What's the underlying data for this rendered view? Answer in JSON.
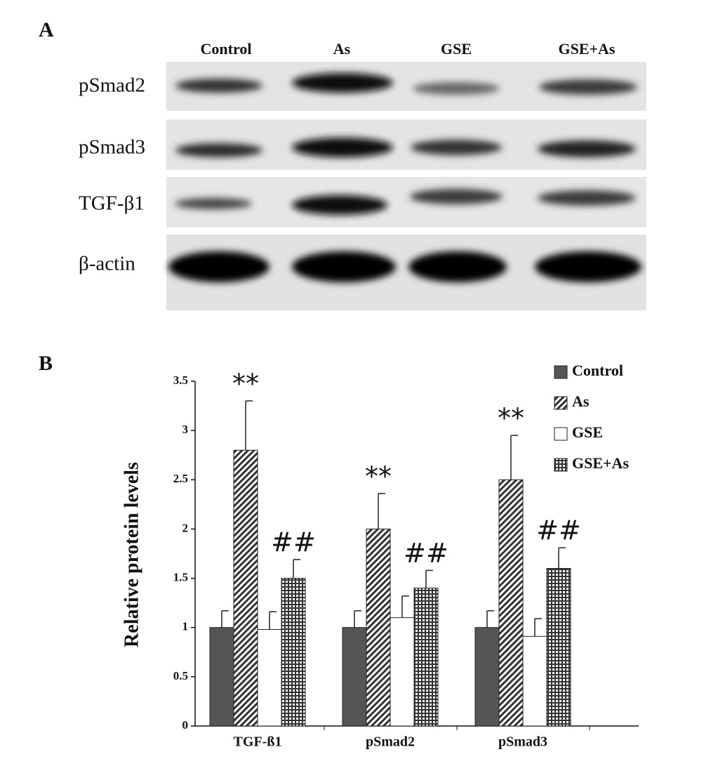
{
  "panels": [
    "A",
    "B"
  ],
  "blot": {
    "lanes": [
      "Control",
      "As",
      "GSE",
      "GSE+As"
    ],
    "rows": [
      "pSmad2",
      "pSmad3",
      "TGF-β1",
      "β-actin"
    ]
  },
  "chart_data": {
    "type": "bar",
    "y_label": "Relative protein levels",
    "categories": [
      "TGF-ß1",
      "pSmad2",
      "pSmad3"
    ],
    "series": [
      {
        "name": "Control",
        "color": "#555555",
        "pattern": "solid",
        "values": [
          1.0,
          1.0,
          1.0
        ],
        "errors": [
          0.17,
          0.17,
          0.17
        ]
      },
      {
        "name": "As",
        "color": "#333333",
        "pattern": "diagonal",
        "values": [
          2.8,
          2.0,
          2.5
        ],
        "errors": [
          0.5,
          0.36,
          0.45
        ]
      },
      {
        "name": "GSE",
        "color": "#ffffff",
        "pattern": "solid",
        "values": [
          0.98,
          1.1,
          0.91
        ],
        "errors": [
          0.18,
          0.22,
          0.18
        ]
      },
      {
        "name": "GSE+As",
        "color": "#333333",
        "pattern": "grid",
        "values": [
          1.5,
          1.4,
          1.6
        ],
        "errors": [
          0.19,
          0.18,
          0.21
        ]
      }
    ],
    "annotations": [
      "**",
      "##",
      "**",
      "##",
      "**",
      "##"
    ],
    "ylim": [
      0,
      3.5
    ],
    "yticks": [
      0,
      0.5,
      1,
      1.5,
      2,
      2.5,
      3,
      3.5
    ],
    "legend": "upper right"
  }
}
